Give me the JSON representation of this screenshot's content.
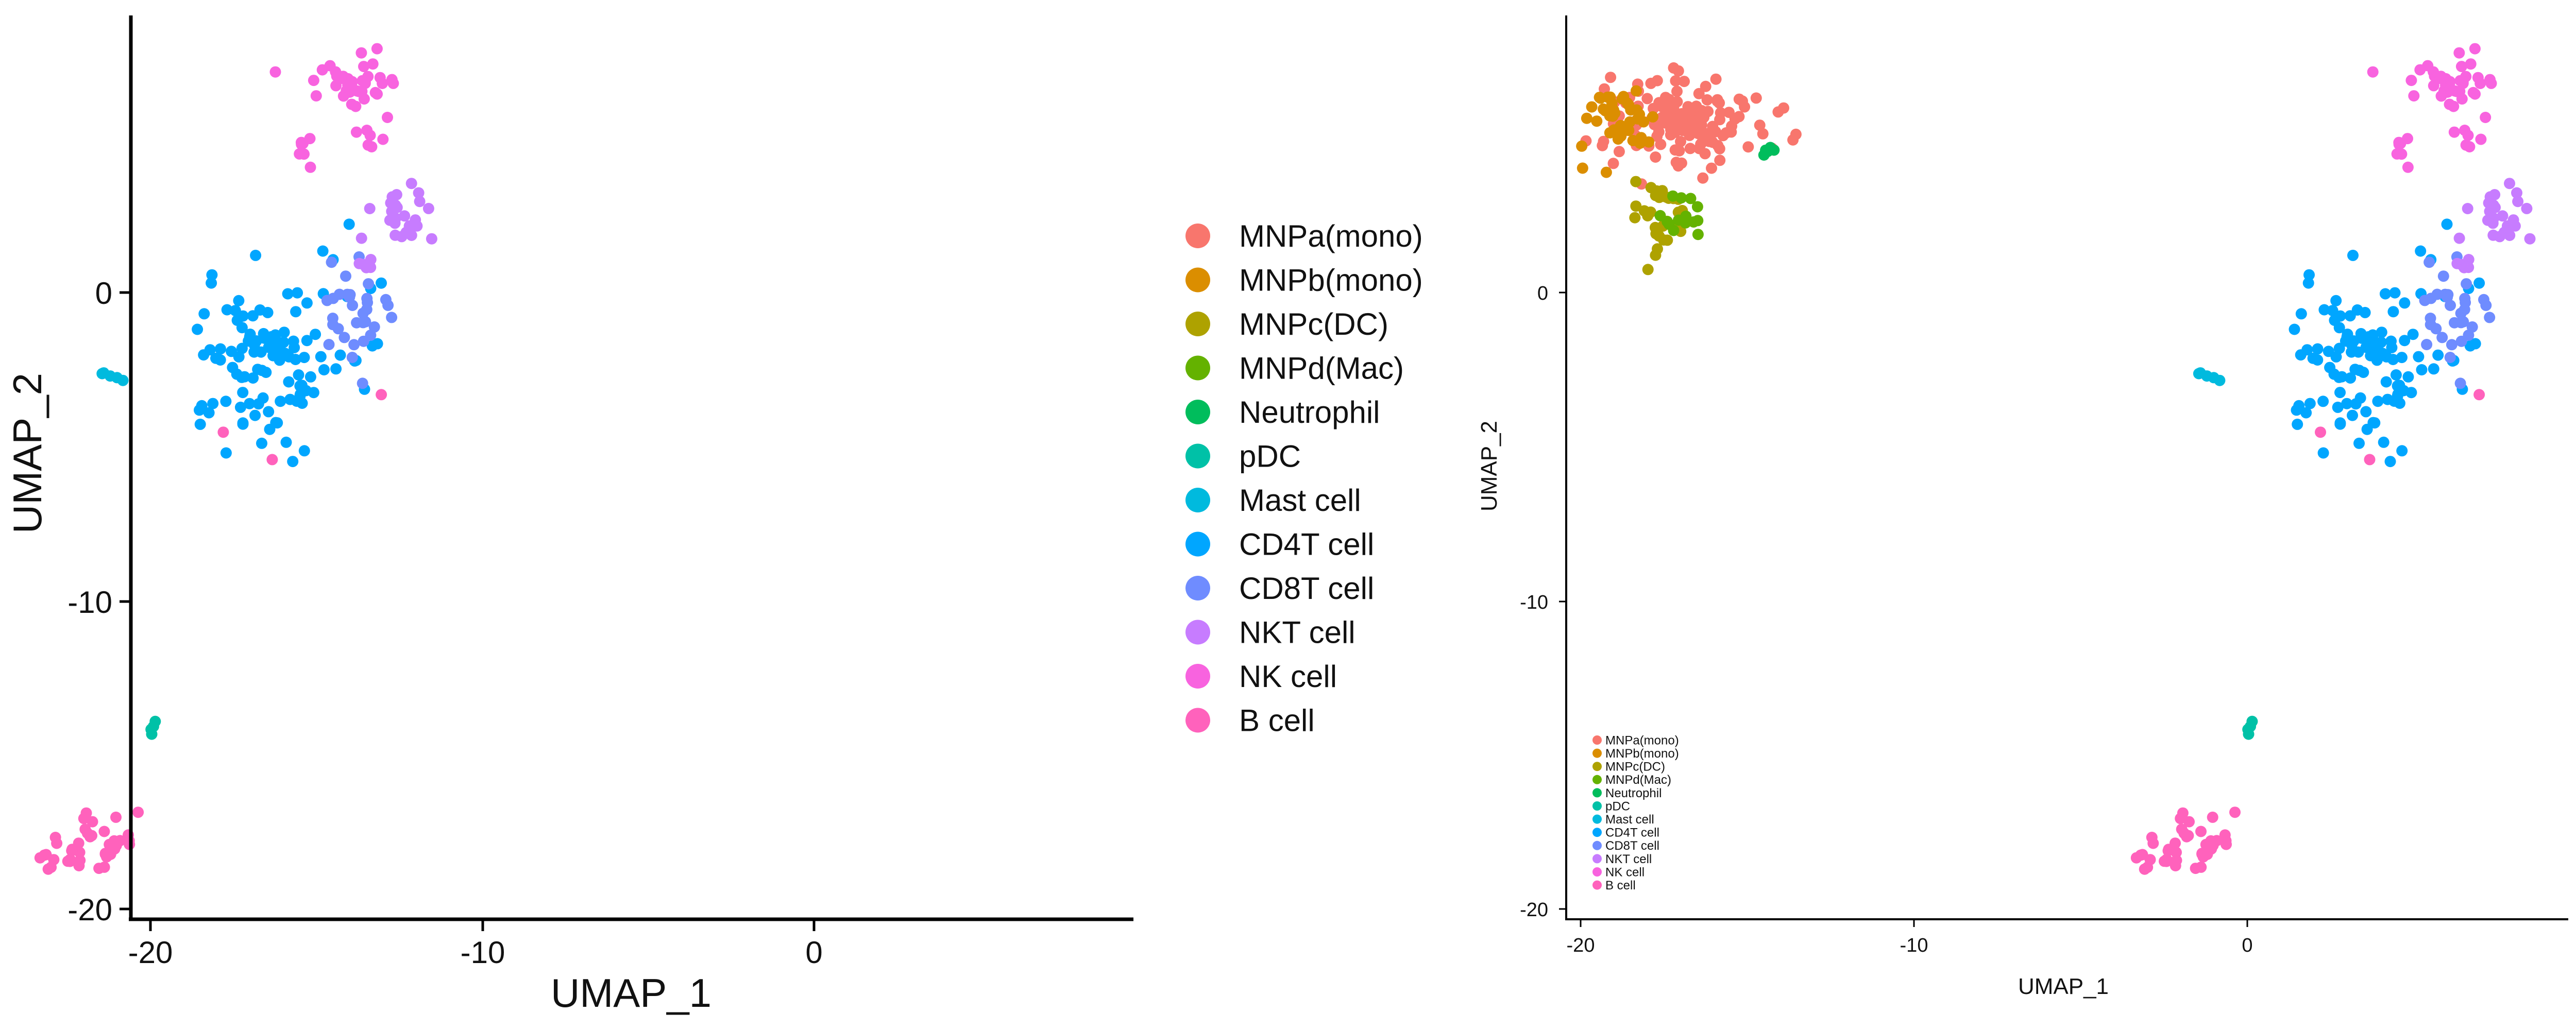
{
  "chart_data": [
    {
      "type": "scatter",
      "title": "",
      "xlabel": "UMAP_1",
      "ylabel": "UMAP_2",
      "xlim": [
        -21,
        9.5
      ],
      "ylim": [
        -20.5,
        9
      ],
      "xticks": [
        -20,
        -10,
        0
      ],
      "yticks": [
        0,
        -10,
        -20
      ],
      "grid": false,
      "legend_position": "right"
    },
    {
      "type": "scatter",
      "title": "",
      "xlabel": "UMAP_1",
      "ylabel": "UMAP_2",
      "xlim": [
        -21,
        9.5
      ],
      "ylim": [
        -20.5,
        9
      ],
      "xticks": [
        -20,
        -10,
        0
      ],
      "yticks": [
        0,
        -10,
        -20
      ],
      "grid": false,
      "legend_position": "inside-bottom-left"
    }
  ],
  "series": [
    {
      "name": "MNPa(mono)",
      "color": "#F8766D",
      "clusters": [
        {
          "cx": -16.8,
          "cy": 5.6,
          "sx": 1.15,
          "sy": 0.75,
          "n": 150
        }
      ]
    },
    {
      "name": "MNPb(mono)",
      "color": "#DB8E00",
      "clusters": [
        {
          "cx": -18.9,
          "cy": 5.6,
          "sx": 0.55,
          "sy": 0.55,
          "n": 40
        }
      ]
    },
    {
      "name": "MNPc(DC)",
      "color": "#AEA200",
      "clusters": [
        {
          "cx": -17.6,
          "cy": 2.6,
          "sx": 0.45,
          "sy": 0.6,
          "n": 30
        }
      ]
    },
    {
      "name": "MNPd(Mac)",
      "color": "#64B200",
      "clusters": [
        {
          "cx": -16.9,
          "cy": 2.3,
          "sx": 0.3,
          "sy": 0.4,
          "n": 14
        }
      ]
    },
    {
      "name": "Neutrophil",
      "color": "#00BD5C",
      "clusters": [
        {
          "cx": -14.3,
          "cy": 4.65,
          "sx": 0.12,
          "sy": 0.12,
          "n": 6
        }
      ]
    },
    {
      "name": "pDC",
      "color": "#00C1A7",
      "clusters": [
        {
          "cx": 0.05,
          "cy": -14.1,
          "sx": 0.08,
          "sy": 0.12,
          "n": 4
        }
      ]
    },
    {
      "name": "Mast cell",
      "color": "#00BADE",
      "clusters": [
        {
          "cx": -1.3,
          "cy": -2.7,
          "sx": 0.25,
          "sy": 0.1,
          "n": 5
        }
      ]
    },
    {
      "name": "CD4T cell",
      "color": "#00A6FF",
      "clusters": [
        {
          "cx": 3.0,
          "cy": -2.6,
          "sx": 1.0,
          "sy": 1.35,
          "n": 85
        },
        {
          "cx": 5.3,
          "cy": -1.6,
          "sx": 1.3,
          "sy": 1.6,
          "n": 30
        }
      ]
    },
    {
      "name": "CD8T cell",
      "color": "#6F8CFF",
      "clusters": [
        {
          "cx": 6.0,
          "cy": -0.6,
          "sx": 0.55,
          "sy": 0.7,
          "n": 32
        }
      ]
    },
    {
      "name": "NKT cell",
      "color": "#C77CFF",
      "clusters": [
        {
          "cx": 7.5,
          "cy": 2.7,
          "sx": 0.4,
          "sy": 0.55,
          "n": 24
        },
        {
          "cx": 6.6,
          "cy": 1.2,
          "sx": 0.2,
          "sy": 0.4,
          "n": 6
        }
      ]
    },
    {
      "name": "NK cell",
      "color": "#F863DF",
      "clusters": [
        {
          "cx": 6.2,
          "cy": 6.8,
          "sx": 0.7,
          "sy": 0.5,
          "n": 40
        },
        {
          "cx": 4.6,
          "cy": 4.7,
          "sx": 0.15,
          "sy": 0.2,
          "n": 7
        },
        {
          "cx": 6.5,
          "cy": 4.9,
          "sx": 0.2,
          "sy": 0.35,
          "n": 5
        }
      ]
    },
    {
      "name": "B cell",
      "color": "#FF62BC",
      "clusters": [
        {
          "cx": -1.85,
          "cy": -18.0,
          "sx": 0.8,
          "sy": 0.45,
          "n": 45
        },
        {
          "cx": 7.0,
          "cy": -3.2,
          "sx": 0.05,
          "sy": 0.05,
          "n": 1
        },
        {
          "cx": 2.2,
          "cy": -4.5,
          "sx": 0.05,
          "sy": 0.05,
          "n": 1
        },
        {
          "cx": 3.6,
          "cy": -5.4,
          "sx": 0.05,
          "sy": 0.05,
          "n": 1
        }
      ]
    }
  ]
}
